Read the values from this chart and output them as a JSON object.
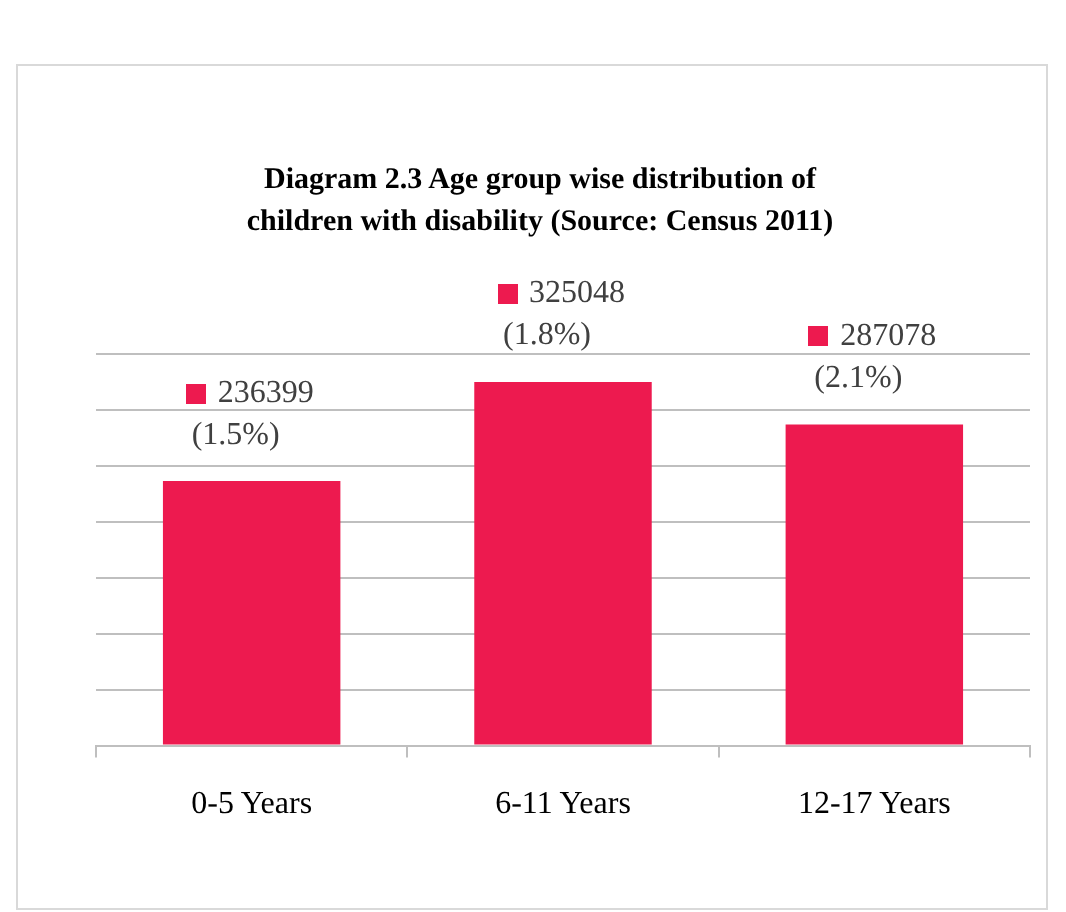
{
  "chart_data": {
    "type": "bar",
    "title": "Diagram 2.3 Age group wise distribution of children with disability (Source: Census 2011)",
    "categories": [
      "0-5 Years",
      "6-11 Years",
      "12-17 Years"
    ],
    "values": [
      236399,
      325048,
      287078
    ],
    "value_labels": [
      "236399 (1.5%)",
      "325048 (1.8%)",
      "287078 (2.1%)"
    ],
    "color": "#ed1a4f",
    "ylim": [
      0,
      350000
    ],
    "yticks": [
      {
        "value": 0,
        "label": null
      },
      {
        "value": 50000,
        "label": null
      },
      {
        "value": 100000,
        "label": null
      },
      {
        "value": 150000,
        "label": null
      },
      {
        "value": 200000,
        "label": null
      },
      {
        "value": 250000,
        "label": null
      },
      {
        "value": 300000,
        "label": null
      },
      {
        "value": 350000,
        "label": null
      }
    ],
    "grid": "y",
    "tick_labels": "x",
    "legend": false
  }
}
